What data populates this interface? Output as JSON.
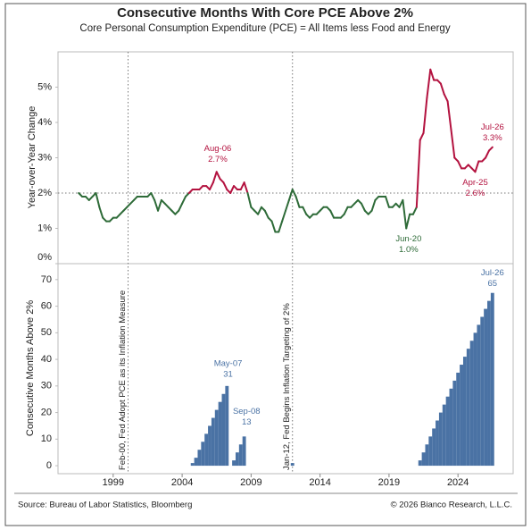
{
  "title": "Consecutive Months With Core PCE Above 2%",
  "subtitle": "Core Personal Consumption Expenditure (PCE) = All Items less Food and Energy",
  "source": "Source: Bureau of Labor Statistics, Bloomberg",
  "copyright": "© 2026 Bianco Research, L.L.C.",
  "events": [
    {
      "x": 2000.08,
      "label": "Feb-00, Fed Adopt PCE as its Inflation Measure"
    },
    {
      "x": 2012.0,
      "label": "Jan-12, Fed Begins Inflation Targeting of 2%"
    }
  ],
  "chart_data": [
    {
      "type": "line",
      "y_label": "Year-over-Year Change",
      "threshold": 2,
      "color_above": "#b3123f",
      "color_below": "#2e6b38",
      "xlim": [
        1995,
        2028
      ],
      "ylim": [
        0,
        6
      ],
      "yticks": [
        {
          "value": 0,
          "label": "0%"
        },
        {
          "value": 1,
          "label": "1%"
        },
        {
          "value": 2,
          "label": "2%"
        },
        {
          "value": 3,
          "label": "3%"
        },
        {
          "value": 4,
          "label": "4%"
        },
        {
          "value": 5,
          "label": "5%"
        }
      ],
      "x": [
        1996.5,
        1996.75,
        1997,
        1997.25,
        1997.5,
        1997.75,
        1998,
        1998.25,
        1998.5,
        1998.75,
        1999,
        1999.25,
        1999.5,
        1999.75,
        2000,
        2000.25,
        2000.5,
        2000.75,
        2001,
        2001.25,
        2001.5,
        2001.75,
        2002,
        2002.25,
        2002.5,
        2002.75,
        2003,
        2003.25,
        2003.5,
        2003.75,
        2004,
        2004.25,
        2004.5,
        2004.75,
        2005,
        2005.25,
        2005.5,
        2005.75,
        2006,
        2006.25,
        2006.5,
        2006.75,
        2007,
        2007.25,
        2007.5,
        2007.75,
        2008,
        2008.25,
        2008.5,
        2008.75,
        2009,
        2009.25,
        2009.5,
        2009.75,
        2010,
        2010.25,
        2010.5,
        2010.75,
        2011,
        2011.25,
        2011.5,
        2011.75,
        2012,
        2012.25,
        2012.5,
        2012.75,
        2013,
        2013.25,
        2013.5,
        2013.75,
        2014,
        2014.25,
        2014.5,
        2014.75,
        2015,
        2015.25,
        2015.5,
        2015.75,
        2016,
        2016.25,
        2016.5,
        2016.75,
        2017,
        2017.25,
        2017.5,
        2017.75,
        2018,
        2018.25,
        2018.5,
        2018.75,
        2019,
        2019.25,
        2019.5,
        2019.75,
        2020,
        2020.25,
        2020.5,
        2020.75,
        2021,
        2021.25,
        2021.5,
        2021.75,
        2022,
        2022.25,
        2022.5,
        2022.75,
        2023,
        2023.25,
        2023.5,
        2023.75,
        2024,
        2024.25,
        2024.5,
        2024.75,
        2025,
        2025.25,
        2025.5,
        2025.75,
        2026,
        2026.25,
        2026.5
      ],
      "values": [
        2.0,
        1.9,
        1.9,
        1.8,
        1.9,
        2.0,
        1.6,
        1.3,
        1.2,
        1.2,
        1.3,
        1.3,
        1.4,
        1.5,
        1.6,
        1.7,
        1.8,
        1.9,
        1.9,
        1.9,
        1.9,
        2.0,
        1.8,
        1.5,
        1.8,
        1.7,
        1.6,
        1.5,
        1.4,
        1.5,
        1.7,
        1.9,
        2.0,
        2.1,
        2.1,
        2.1,
        2.2,
        2.2,
        2.1,
        2.3,
        2.6,
        2.4,
        2.3,
        2.1,
        2.0,
        2.2,
        2.1,
        2.1,
        2.3,
        2.0,
        1.6,
        1.5,
        1.4,
        1.6,
        1.5,
        1.3,
        1.2,
        0.9,
        0.9,
        1.2,
        1.5,
        1.8,
        2.1,
        1.9,
        1.6,
        1.6,
        1.4,
        1.3,
        1.4,
        1.4,
        1.5,
        1.6,
        1.6,
        1.5,
        1.3,
        1.3,
        1.3,
        1.4,
        1.6,
        1.6,
        1.7,
        1.8,
        1.7,
        1.5,
        1.4,
        1.5,
        1.8,
        1.9,
        1.9,
        1.9,
        1.6,
        1.6,
        1.7,
        1.6,
        1.8,
        1.0,
        1.4,
        1.4,
        1.6,
        3.5,
        3.7,
        4.7,
        5.5,
        5.2,
        5.2,
        5.1,
        4.8,
        4.6,
        3.8,
        3.0,
        2.9,
        2.7,
        2.7,
        2.8,
        2.7,
        2.6,
        2.9,
        2.9,
        3.0,
        3.2,
        3.3
      ],
      "annotations": [
        {
          "x": 2006.58,
          "y": 2.7,
          "label": "Aug-06",
          "value_label": "2.7%"
        },
        {
          "x": 2020.42,
          "y": 1.0,
          "label": "Jun-20",
          "value_label": "1.0%"
        },
        {
          "x": 2025.25,
          "y": 2.6,
          "label": "Apr-25",
          "value_label": "2.6%"
        },
        {
          "x": 2026.5,
          "y": 3.3,
          "label": "Jul-26",
          "value_label": "3.3%"
        }
      ]
    },
    {
      "type": "bar",
      "y_label": "Consecutive Months Above 2%",
      "color": "#4a72a4",
      "xlim": [
        1995,
        2028
      ],
      "xticks": [
        1999,
        2004,
        2009,
        2014,
        2019,
        2024
      ],
      "ylim": [
        -3,
        76
      ],
      "yticks": [
        0,
        10,
        20,
        30,
        40,
        50,
        60,
        70
      ],
      "x": [
        1996.5,
        1996.75,
        1997,
        1997.25,
        1997.5,
        1997.75,
        1998,
        1998.25,
        1998.5,
        1998.75,
        1999,
        1999.25,
        1999.5,
        1999.75,
        2000,
        2000.25,
        2000.5,
        2000.75,
        2001,
        2001.25,
        2001.5,
        2001.75,
        2002,
        2002.25,
        2002.5,
        2002.75,
        2003,
        2003.25,
        2003.5,
        2003.75,
        2004,
        2004.25,
        2004.5,
        2004.75,
        2005,
        2005.25,
        2005.5,
        2005.75,
        2006,
        2006.25,
        2006.5,
        2006.75,
        2007,
        2007.25,
        2007.5,
        2007.75,
        2008,
        2008.25,
        2008.5,
        2008.75,
        2009,
        2009.25,
        2009.5,
        2009.75,
        2010,
        2010.25,
        2010.5,
        2010.75,
        2011,
        2011.25,
        2011.5,
        2011.75,
        2012,
        2012.25,
        2012.5,
        2012.75,
        2013,
        2013.25,
        2013.5,
        2013.75,
        2014,
        2014.25,
        2014.5,
        2014.75,
        2015,
        2015.25,
        2015.5,
        2015.75,
        2016,
        2016.25,
        2016.5,
        2016.75,
        2017,
        2017.25,
        2017.5,
        2017.75,
        2018,
        2018.25,
        2018.5,
        2018.75,
        2019,
        2019.25,
        2019.5,
        2019.75,
        2020,
        2020.25,
        2020.5,
        2020.75,
        2021,
        2021.25,
        2021.5,
        2021.75,
        2022,
        2022.25,
        2022.5,
        2022.75,
        2023,
        2023.25,
        2023.5,
        2023.75,
        2024,
        2024.25,
        2024.5,
        2024.75,
        2025,
        2025.25,
        2025.5,
        2025.75,
        2026,
        2026.25,
        2026.5
      ],
      "values": [
        0,
        0,
        0,
        0,
        0,
        0,
        0,
        0,
        0,
        0,
        0,
        0,
        0,
        0,
        0,
        0,
        0,
        0,
        0,
        0,
        0,
        0,
        0,
        0,
        0,
        0,
        0,
        0,
        0,
        0,
        0,
        0,
        0,
        1,
        3,
        6,
        9,
        12,
        15,
        18,
        21,
        24,
        27,
        30,
        0,
        2,
        5,
        8,
        11,
        0,
        0,
        0,
        0,
        0,
        0,
        0,
        0,
        0,
        0,
        0,
        0,
        0,
        1,
        0,
        0,
        0,
        0,
        0,
        0,
        0,
        0,
        0,
        0,
        0,
        0,
        0,
        0,
        0,
        0,
        0,
        0,
        0,
        0,
        0,
        0,
        0,
        0,
        0,
        0,
        0,
        0,
        0,
        0,
        0,
        0,
        0,
        0,
        0,
        0,
        2,
        5,
        8,
        11,
        14,
        17,
        20,
        23,
        26,
        29,
        32,
        35,
        38,
        41,
        44,
        47,
        50,
        53,
        56,
        59,
        62,
        65
      ],
      "annotations": [
        {
          "x": 2007.33,
          "y": 31,
          "label": "May-07"
        },
        {
          "x": 2008.67,
          "y": 13,
          "label": "Sep-08"
        },
        {
          "x": 2026.5,
          "y": 65,
          "label": "Jul-26"
        }
      ]
    }
  ]
}
